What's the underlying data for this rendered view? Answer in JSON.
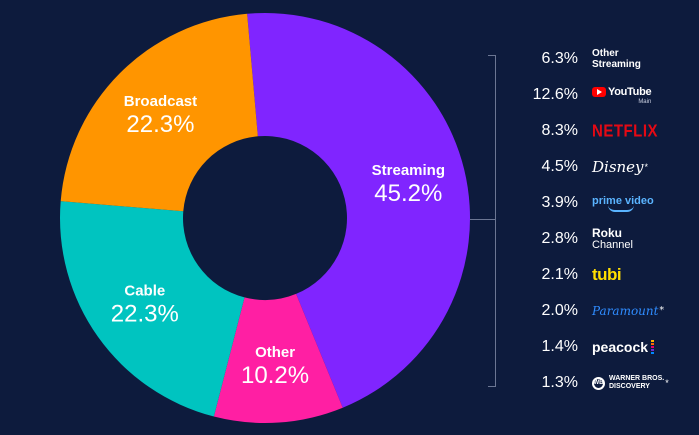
{
  "chart_data": {
    "type": "pie",
    "title": "",
    "slices": [
      {
        "name": "Streaming",
        "label": "45.2%",
        "value": 45.2,
        "color": "#8025ff"
      },
      {
        "name": "Other",
        "label": "10.2%",
        "value": 10.2,
        "color": "#ff1fa3"
      },
      {
        "name": "Cable",
        "label": "22.3%",
        "value": 22.3,
        "color": "#00c4c0"
      },
      {
        "name": "Broadcast",
        "label": "22.3%",
        "value": 22.3,
        "color": "#ff9500"
      }
    ],
    "breakdown": {
      "of": "Streaming",
      "items": [
        {
          "label": "6.3%",
          "value": 6.3,
          "brand": "Other Streaming"
        },
        {
          "label": "12.6%",
          "value": 12.6,
          "brand": "YouTube"
        },
        {
          "label": "8.3%",
          "value": 8.3,
          "brand": "NETFLIX"
        },
        {
          "label": "4.5%",
          "value": 4.5,
          "brand": "Disney"
        },
        {
          "label": "3.9%",
          "value": 3.9,
          "brand": "prime video"
        },
        {
          "label": "2.8%",
          "value": 2.8,
          "brand": "Roku Channel"
        },
        {
          "label": "2.1%",
          "value": 2.1,
          "brand": "tubi"
        },
        {
          "label": "2.0%",
          "value": 2.0,
          "brand": "Paramount"
        },
        {
          "label": "1.4%",
          "value": 1.4,
          "brand": "peacock"
        },
        {
          "label": "1.3%",
          "value": 1.3,
          "brand": "Warner Bros. Discovery"
        }
      ]
    }
  },
  "brands": {
    "other_streaming_line1": "Other",
    "other_streaming_line2": "Streaming",
    "youtube": "YouTube",
    "youtube_sub": "Main",
    "netflix": "NETFLIX",
    "disney": "Disney",
    "prime": "prime video",
    "roku_line1": "Roku",
    "roku_line2": "Channel",
    "tubi": "tubi",
    "paramount": "Paramount",
    "peacock": "peacock",
    "wbd_line1": "WARNER BROS.",
    "wbd_line2": "DISCOVERY",
    "asterisk": "*"
  },
  "colors": {
    "background": "#0d1b3d",
    "netflix": "#e50914",
    "youtube": "#ff0000",
    "tubi": "#ffde00",
    "paramount": "#2f8cff",
    "prime": "#5ab4ff"
  }
}
